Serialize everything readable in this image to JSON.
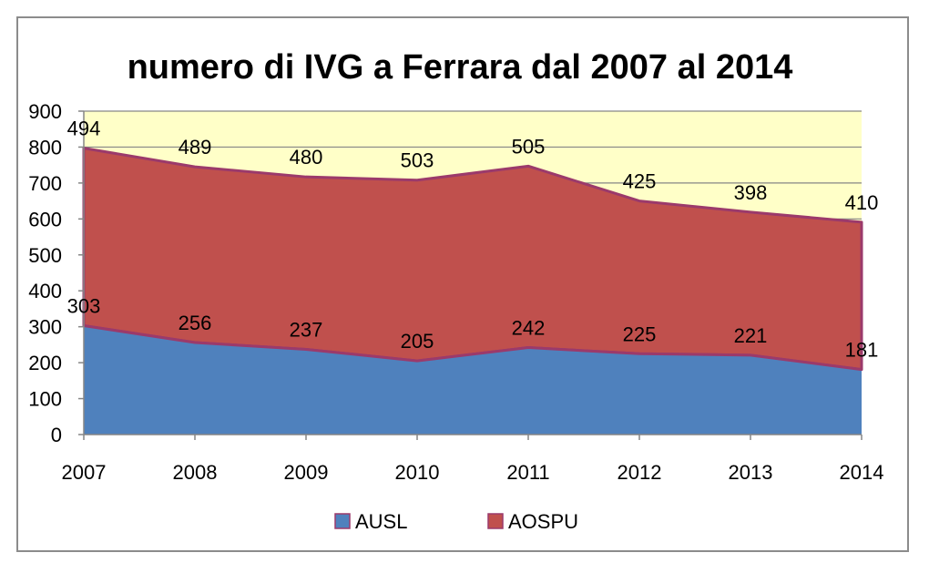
{
  "chart_data": {
    "type": "area",
    "stacked": true,
    "title": "numero di IVG a Ferrara dal 2007 al 2014",
    "xlabel": "",
    "ylabel": "",
    "categories": [
      "2007",
      "2008",
      "2009",
      "2010",
      "2011",
      "2012",
      "2013",
      "2014"
    ],
    "ylim": [
      0,
      900
    ],
    "yticks": [
      "0",
      "100",
      "200",
      "300",
      "400",
      "500",
      "600",
      "700",
      "800",
      "900"
    ],
    "grid": true,
    "legend_position": "bottom",
    "series": [
      {
        "name": "AUSL",
        "values": [
          303,
          256,
          237,
          205,
          242,
          225,
          221,
          181
        ],
        "color": "#4f81bd"
      },
      {
        "name": "AOSPU",
        "values": [
          494,
          489,
          480,
          503,
          505,
          425,
          398,
          410
        ],
        "color": "#c0504d"
      }
    ],
    "colors": {
      "plot_background": "#ffffc8",
      "gridline": "#868686",
      "series_border": "#9b3a6b"
    }
  }
}
